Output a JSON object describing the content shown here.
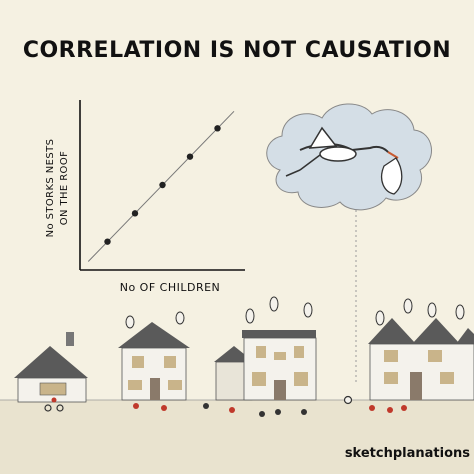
{
  "title": "CORRELATION IS NOT CAUSATION",
  "credit": "sketchplanations",
  "chart_data": {
    "type": "scatter",
    "title": "CORRELATION IS NOT CAUSATION",
    "xlabel": "No OF CHILDREN",
    "ylabel_line1": "No STORKS NESTS",
    "ylabel_line2": "ON THE ROOF",
    "x": [
      1,
      2,
      3,
      4,
      5
    ],
    "y": [
      1,
      2,
      3,
      4,
      5
    ],
    "xlim": [
      0,
      6
    ],
    "ylim": [
      0,
      6
    ],
    "trendline": true,
    "grid": false,
    "point_color": "#222222",
    "line_color": "#777777"
  },
  "colors": {
    "background": "#f5f1e2",
    "cloud": "#d4dee6",
    "house_wall": "#f4f2ec",
    "roof": "#5a5a5a",
    "window": "#c9b48a",
    "ground": "#e9e3cf"
  }
}
